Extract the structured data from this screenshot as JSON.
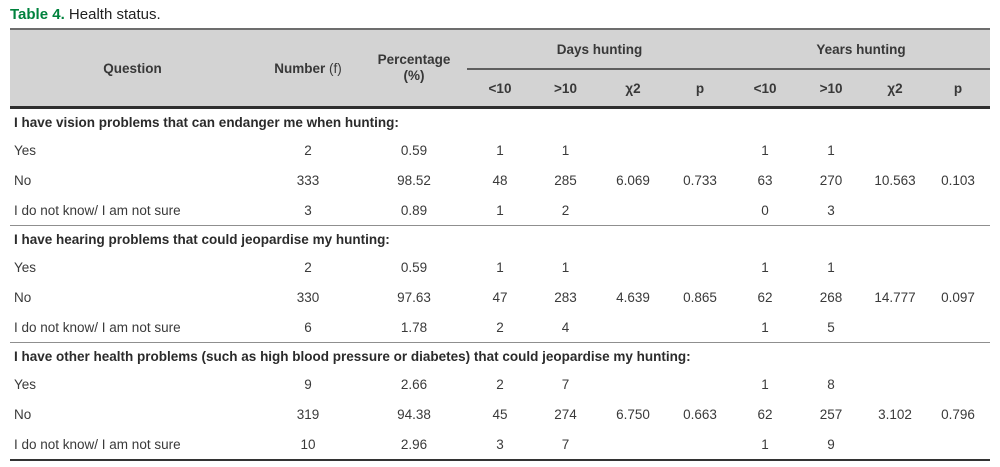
{
  "title": {
    "label": "Table 4.",
    "text": "Health status."
  },
  "colors": {
    "title_green": "#00823d",
    "header_background": "#d3d3d3",
    "body_text": "#3a3a3a",
    "rule_dark": "#2e2e2e"
  },
  "table": {
    "header": {
      "question": "Question",
      "number": "Number",
      "number_unit": "(f)",
      "percentage": "Percentage",
      "percentage_unit": "(%)",
      "group_days": "Days hunting",
      "group_years": "Years hunting",
      "subcols": [
        "<10",
        ">10",
        "χ2",
        "p",
        "<10",
        ">10",
        "χ2",
        "p"
      ]
    },
    "sections": [
      {
        "header": "I have vision problems that can endanger me when hunting:",
        "rows": [
          {
            "label": "Yes",
            "values": [
              "2",
              "0.59",
              "1",
              "1",
              "",
              "",
              "1",
              "1",
              "",
              ""
            ]
          },
          {
            "label": "No",
            "values": [
              "333",
              "98.52",
              "48",
              "285",
              "6.069",
              "0.733",
              "63",
              "270",
              "10.563",
              "0.103"
            ]
          },
          {
            "label": "I do not know/ I am not sure",
            "values": [
              "3",
              "0.89",
              "1",
              "2",
              "",
              "",
              "0",
              "3",
              "",
              ""
            ]
          }
        ]
      },
      {
        "header": "I have hearing problems that could jeopardise my hunting:",
        "rows": [
          {
            "label": "Yes",
            "values": [
              "2",
              "0.59",
              "1",
              "1",
              "",
              "",
              "1",
              "1",
              "",
              ""
            ]
          },
          {
            "label": "No",
            "values": [
              "330",
              "97.63",
              "47",
              "283",
              "4.639",
              "0.865",
              "62",
              "268",
              "14.777",
              "0.097"
            ]
          },
          {
            "label": "I do not know/ I am not sure",
            "values": [
              "6",
              "1.78",
              "2",
              "4",
              "",
              "",
              "1",
              "5",
              "",
              ""
            ]
          }
        ]
      },
      {
        "header": "I have other health problems (such as high blood pressure or diabetes) that could jeopardise my hunting:",
        "rows": [
          {
            "label": "Yes",
            "values": [
              "9",
              "2.66",
              "2",
              "7",
              "",
              "",
              "1",
              "8",
              "",
              ""
            ]
          },
          {
            "label": "No",
            "values": [
              "319",
              "94.38",
              "45",
              "274",
              "6.750",
              "0.663",
              "62",
              "257",
              "3.102",
              "0.796"
            ]
          },
          {
            "label": "I do not know/ I am not sure",
            "values": [
              "10",
              "2.96",
              "3",
              "7",
              "",
              "",
              "1",
              "9",
              "",
              ""
            ]
          }
        ]
      }
    ]
  }
}
